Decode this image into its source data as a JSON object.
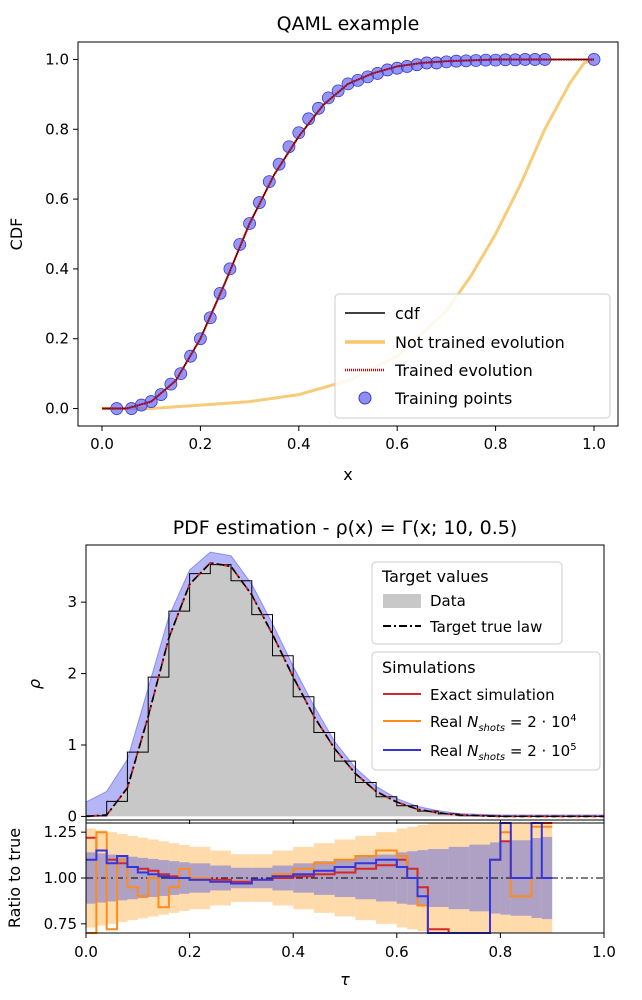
{
  "chart_data": [
    {
      "type": "line",
      "title": "QAML example",
      "xlabel": "x",
      "ylabel": "CDF",
      "xlim": [
        0,
        1
      ],
      "ylim": [
        -0.05,
        1.05
      ],
      "xticks": [
        "0.0",
        "0.2",
        "0.4",
        "0.6",
        "0.8",
        "1.0"
      ],
      "yticks": [
        "0.0",
        "0.2",
        "0.4",
        "0.6",
        "0.8",
        "1.0"
      ],
      "legend_position": "lower-right",
      "series": [
        {
          "name": "cdf",
          "color": "#000000",
          "x": [
            0.0,
            0.05,
            0.1,
            0.15,
            0.2,
            0.25,
            0.3,
            0.35,
            0.4,
            0.45,
            0.5,
            0.55,
            0.6,
            0.65,
            0.7,
            0.8,
            0.9,
            1.0
          ],
          "y": [
            0.0,
            0.0,
            0.02,
            0.08,
            0.2,
            0.36,
            0.53,
            0.67,
            0.78,
            0.87,
            0.93,
            0.96,
            0.98,
            0.99,
            0.995,
            1.0,
            1.0,
            1.0
          ]
        },
        {
          "name": "Not trained evolution",
          "color": "#f6c66a",
          "x": [
            0.0,
            0.1,
            0.2,
            0.3,
            0.4,
            0.5,
            0.6,
            0.7,
            0.75,
            0.8,
            0.85,
            0.9,
            0.95,
            0.98,
            1.0
          ],
          "y": [
            0.0,
            0.0,
            0.01,
            0.02,
            0.04,
            0.08,
            0.15,
            0.28,
            0.38,
            0.5,
            0.64,
            0.8,
            0.93,
            0.99,
            1.0
          ]
        },
        {
          "name": "Trained evolution",
          "color": "#c00000",
          "x": [
            0.0,
            0.05,
            0.1,
            0.15,
            0.2,
            0.25,
            0.3,
            0.35,
            0.4,
            0.45,
            0.5,
            0.55,
            0.6,
            0.65,
            0.7,
            0.8,
            0.9,
            1.0
          ],
          "y": [
            0.0,
            0.0,
            0.02,
            0.08,
            0.2,
            0.36,
            0.53,
            0.67,
            0.78,
            0.87,
            0.93,
            0.96,
            0.98,
            0.99,
            0.995,
            1.0,
            1.0,
            1.0
          ]
        },
        {
          "name": "Training points",
          "color": "#5b5ef0",
          "x": [
            0.03,
            0.06,
            0.08,
            0.1,
            0.12,
            0.14,
            0.16,
            0.18,
            0.2,
            0.22,
            0.24,
            0.26,
            0.28,
            0.3,
            0.32,
            0.34,
            0.36,
            0.38,
            0.4,
            0.42,
            0.44,
            0.46,
            0.48,
            0.5,
            0.52,
            0.54,
            0.56,
            0.58,
            0.6,
            0.62,
            0.64,
            0.66,
            0.68,
            0.7,
            0.72,
            0.74,
            0.76,
            0.78,
            0.8,
            0.82,
            0.84,
            0.86,
            0.88,
            0.9,
            1.0
          ],
          "y": [
            0.0,
            0.0,
            0.01,
            0.02,
            0.04,
            0.07,
            0.1,
            0.15,
            0.2,
            0.26,
            0.33,
            0.4,
            0.47,
            0.53,
            0.59,
            0.65,
            0.7,
            0.75,
            0.79,
            0.83,
            0.86,
            0.89,
            0.91,
            0.93,
            0.94,
            0.95,
            0.96,
            0.97,
            0.975,
            0.98,
            0.985,
            0.99,
            0.99,
            0.993,
            0.995,
            0.996,
            0.997,
            0.998,
            0.998,
            0.999,
            0.999,
            1.0,
            1.0,
            1.0,
            1.0
          ]
        }
      ]
    },
    {
      "type": "area",
      "title": "PDF estimation - ρ(x) = Γ(x; 10, 0.5)",
      "xlabel": "",
      "ylabel": "ρ",
      "xlim": [
        0,
        1
      ],
      "ylim": [
        -0.05,
        3.8
      ],
      "yticks": [
        "0",
        "1",
        "2",
        "3"
      ],
      "legend_groups": [
        {
          "title": "Target values",
          "entries": [
            "Data",
            "Target true law"
          ]
        },
        {
          "title": "Simulations",
          "entries": [
            "Exact simulation",
            "Real N_shots = 2·10^4",
            "Real N_shots = 2·10^5"
          ]
        }
      ],
      "legend_position": "upper-right",
      "colors": {
        "data": "#c8c8c8",
        "band": "#5b5ef0",
        "exact": "#d62728",
        "shots4": "#ff8c1a",
        "shots5": "#3535e0"
      },
      "x": [
        0.0,
        0.04,
        0.08,
        0.12,
        0.16,
        0.2,
        0.24,
        0.28,
        0.32,
        0.36,
        0.4,
        0.44,
        0.48,
        0.52,
        0.56,
        0.6,
        0.64,
        0.68,
        0.72,
        0.8,
        1.0
      ],
      "pdf": [
        0.0,
        0.02,
        0.4,
        1.4,
        2.5,
        3.25,
        3.55,
        3.5,
        3.1,
        2.55,
        1.95,
        1.4,
        0.95,
        0.6,
        0.35,
        0.2,
        0.1,
        0.05,
        0.02,
        0.0,
        0.0
      ],
      "band_upper": [
        0.2,
        0.35,
        0.8,
        1.8,
        2.8,
        3.45,
        3.7,
        3.65,
        3.25,
        2.7,
        2.1,
        1.55,
        1.05,
        0.68,
        0.42,
        0.25,
        0.14,
        0.08,
        0.04,
        0.02,
        0.02
      ],
      "band_lower": [
        0.0,
        0.0,
        0.2,
        1.1,
        2.2,
        3.0,
        3.4,
        3.35,
        2.95,
        2.4,
        1.8,
        1.27,
        0.85,
        0.52,
        0.3,
        0.16,
        0.07,
        0.03,
        0.01,
        0.0,
        0.0
      ]
    },
    {
      "type": "line",
      "title": "",
      "xlabel": "τ",
      "ylabel": "Ratio to true",
      "xlim": [
        0,
        1
      ],
      "ylim": [
        0.7,
        1.3
      ],
      "xticks": [
        "0.0",
        "0.2",
        "0.4",
        "0.6",
        "0.8",
        "1.0"
      ],
      "yticks": [
        "0.75",
        "1.00",
        "1.25"
      ],
      "reference_line": 1.0,
      "step_x": [
        0.0,
        0.02,
        0.04,
        0.06,
        0.08,
        0.1,
        0.12,
        0.14,
        0.16,
        0.18,
        0.2,
        0.24,
        0.28,
        0.32,
        0.36,
        0.4,
        0.44,
        0.48,
        0.52,
        0.56,
        0.6,
        0.62,
        0.64,
        0.66,
        0.7,
        0.74,
        0.78,
        0.8,
        0.82,
        0.86,
        0.88,
        0.9
      ],
      "series": [
        {
          "name": "Exact simulation",
          "color": "#d62728",
          "values": [
            1.22,
            1.15,
            1.1,
            1.08,
            1.06,
            1.05,
            1.04,
            1.02,
            1.01,
            1.0,
            0.99,
            0.99,
            0.98,
            0.99,
            1.0,
            1.01,
            1.02,
            1.03,
            1.05,
            1.07,
            1.1,
            1.05,
            0.95,
            0.72,
            0.7,
            0.7,
            1.1,
            1.2,
            1.0,
            1.3,
            1.3
          ]
        },
        {
          "name": "Real N_shots = 2·10^4",
          "color": "#ff8c1a",
          "values": [
            0.7,
            1.25,
            0.72,
            1.1,
            0.95,
            0.9,
            1.0,
            0.84,
            0.95,
            1.05,
            1.0,
            0.98,
            0.97,
            0.99,
            1.02,
            1.05,
            1.08,
            1.1,
            1.12,
            1.15,
            1.12,
            1.0,
            0.85,
            0.7,
            0.7,
            0.7,
            1.1,
            1.25,
            0.9,
            1.28,
            1.28
          ]
        },
        {
          "name": "Real N_shots = 2·10^5",
          "color": "#3535e0",
          "values": [
            1.1,
            1.15,
            1.08,
            1.12,
            1.06,
            1.03,
            1.02,
            1.01,
            1.0,
            1.0,
            0.99,
            0.98,
            0.97,
            0.99,
            1.01,
            1.02,
            1.04,
            1.06,
            1.08,
            1.1,
            1.06,
            1.0,
            0.9,
            0.7,
            0.7,
            0.7,
            1.1,
            1.3,
            1.0,
            1.3,
            1.0
          ]
        }
      ]
    }
  ]
}
